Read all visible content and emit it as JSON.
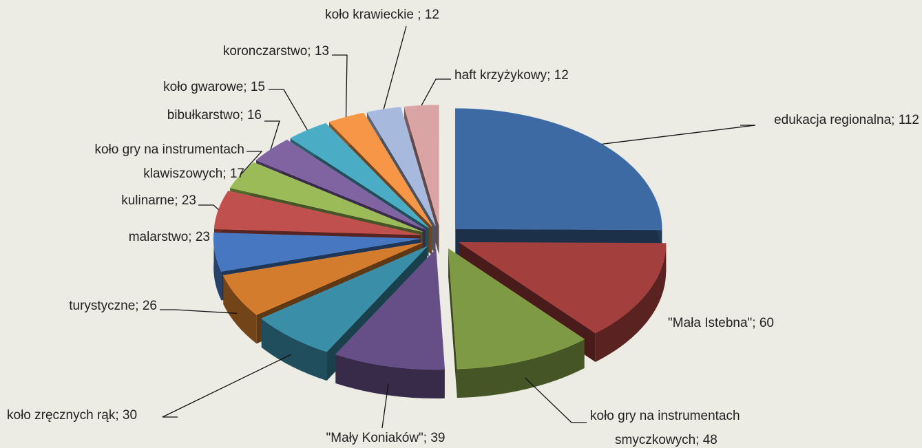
{
  "chart_data": {
    "type": "pie3d",
    "labels": [
      [
        "edukacja regionalna; 112"
      ],
      [
        "\"Mała Istebna\"; 60"
      ],
      [
        "koło gry na instrumentach",
        "smyczkowych; 48"
      ],
      [
        "\"Mały Koniaków\"; 39"
      ],
      [
        "koło zręcznych rąk; 30"
      ],
      [
        "turystyczne; 26"
      ],
      [
        "malarstwo; 23"
      ],
      [
        "kulinarne; 23"
      ],
      [
        "koło gry na instrumentach",
        "klawiszowych; 17"
      ],
      [
        "bibułkarstwo; 16"
      ],
      [
        "koło gwarowe; 15"
      ],
      [
        "koronczarstwo; 13"
      ],
      [
        "koło krawieckie ; 12"
      ],
      [
        "haft krzyżykowy; 12"
      ]
    ],
    "values": [
      112,
      60,
      48,
      39,
      30,
      26,
      23,
      23,
      17,
      16,
      15,
      13,
      12,
      12
    ],
    "colors": [
      "#3e6aa3",
      "#a33f3c",
      "#7f9a44",
      "#664e86",
      "#3a8ea8",
      "#d37c2e",
      "#4677c0",
      "#c0504d",
      "#9bbb59",
      "#8064a2",
      "#4bacc6",
      "#f79646",
      "#a7b9dd",
      "#dba4a4"
    ]
  }
}
